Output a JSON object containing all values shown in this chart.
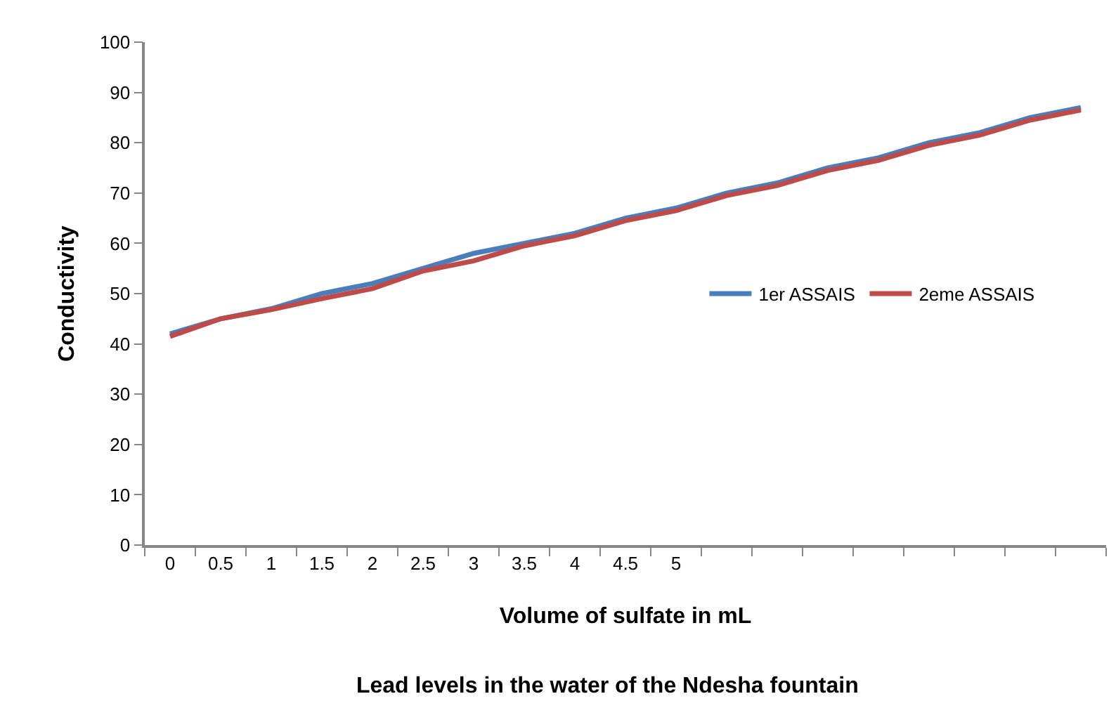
{
  "chart_data": {
    "type": "line",
    "title": "Lead levels in the water of the Ndesha fountain",
    "xlabel": "Volume of sulfate in mL",
    "ylabel": "Conductivity",
    "categories": [
      "0",
      "0.5",
      "1",
      "1.5",
      "2",
      "2.5",
      "3",
      "3.5",
      "4",
      "4.5",
      "5",
      null,
      null,
      null,
      null,
      null,
      null,
      null,
      null
    ],
    "series": [
      {
        "name": "1er ASSAIS",
        "color": "#4a7ebb",
        "values": [
          42,
          45,
          47,
          50,
          52,
          55,
          58,
          60,
          62,
          65,
          67,
          70,
          72,
          75,
          77,
          80,
          82,
          85,
          87
        ]
      },
      {
        "name": "2eme ASSAIS",
        "color": "#be4b48",
        "values": [
          41.5,
          45,
          46.8,
          49,
          51,
          54.5,
          56.5,
          59.5,
          61.5,
          64.5,
          66.5,
          69.5,
          71.5,
          74.5,
          76.5,
          79.5,
          81.5,
          84.5,
          86.5
        ]
      }
    ],
    "ylim": [
      0,
      100
    ],
    "yticks": [
      0,
      10,
      20,
      30,
      40,
      50,
      60,
      70,
      80,
      90,
      100
    ],
    "grid": false,
    "legend": "right",
    "marker": "none",
    "line_style": "solid"
  }
}
